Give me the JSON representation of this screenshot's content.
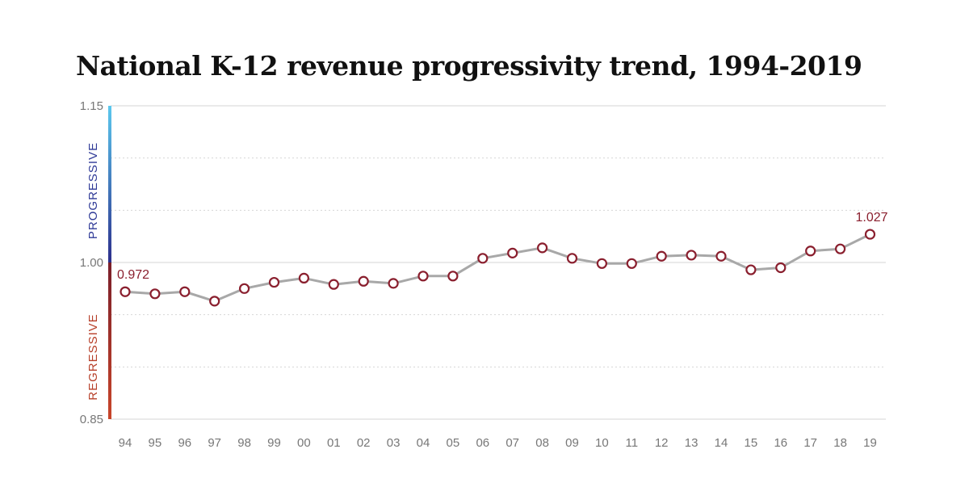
{
  "chart_data": {
    "type": "line",
    "title": "National K-12 revenue progressivity trend, 1994-2019",
    "x": [
      "94",
      "95",
      "96",
      "97",
      "98",
      "99",
      "00",
      "01",
      "02",
      "03",
      "04",
      "05",
      "06",
      "07",
      "08",
      "09",
      "10",
      "11",
      "12",
      "13",
      "14",
      "15",
      "16",
      "17",
      "18",
      "19"
    ],
    "series": [
      {
        "values": [
          0.972,
          0.97,
          0.972,
          0.963,
          0.975,
          0.981,
          0.985,
          0.979,
          0.982,
          0.98,
          0.987,
          0.987,
          1.004,
          1.009,
          1.014,
          1.004,
          0.999,
          0.999,
          1.006,
          1.007,
          1.006,
          0.993,
          0.995,
          1.011,
          1.013,
          1.027
        ]
      }
    ],
    "ylim": [
      0.85,
      1.15
    ],
    "yticks": [
      {
        "value": 1.15,
        "label": "1.15"
      },
      {
        "value": 1.0,
        "label": "1.00"
      },
      {
        "value": 0.85,
        "label": "0.85"
      }
    ],
    "gridlines": [
      1.15,
      1.1,
      1.05,
      1.0,
      0.95,
      0.9,
      0.85
    ],
    "side_labels": {
      "upper": "PROGRESSIVE",
      "lower": "REGRESSIVE"
    },
    "data_labels": [
      {
        "index": 0,
        "text": "0.972"
      },
      {
        "index": 25,
        "text": "1.027"
      }
    ],
    "colors": {
      "line": "#a8a8a8",
      "marker_edge": "#8a1f2e",
      "marker_fill": "#ffffff",
      "progressive_top": "#5bc8ee",
      "progressive_bottom": "#2c2f8c",
      "regressive_top": "#7a1f2a",
      "regressive_bottom": "#c8452a",
      "progressive_text": "#2f3a97",
      "regressive_text": "#b7402a",
      "grid": "#d6d6d6"
    }
  }
}
